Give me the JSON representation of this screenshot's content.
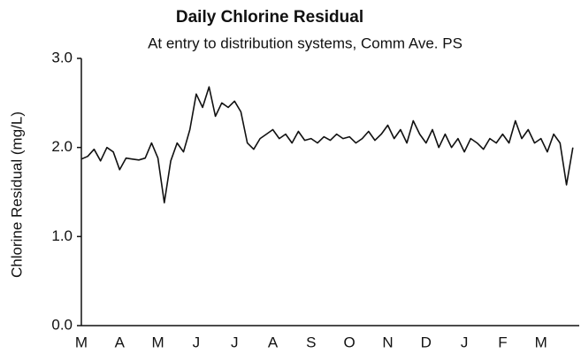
{
  "chart_data": {
    "type": "line",
    "title": "Daily Chlorine Residual",
    "subtitle": "At entry to distribution systems, Comm Ave. PS",
    "y_label": "Chlorine Residual (mg/L)",
    "categories": [
      "M",
      null,
      null,
      null,
      null,
      null,
      "A",
      null,
      null,
      null,
      null,
      null,
      "M",
      null,
      null,
      null,
      null,
      null,
      "J",
      null,
      null,
      null,
      null,
      null,
      "J",
      null,
      null,
      null,
      null,
      null,
      "A",
      null,
      null,
      null,
      null,
      null,
      "S",
      null,
      null,
      null,
      null,
      null,
      "O",
      null,
      null,
      null,
      null,
      null,
      "N",
      null,
      null,
      null,
      null,
      null,
      "D",
      null,
      null,
      null,
      null,
      null,
      "J",
      null,
      null,
      null,
      null,
      null,
      "F",
      null,
      null,
      null,
      null,
      null,
      "M",
      null,
      null,
      null,
      null,
      null
    ],
    "series": [
      {
        "name": "Chlorine Residual",
        "color": "#111111",
        "values": [
          1.87,
          1.9,
          1.98,
          1.85,
          2.0,
          1.95,
          1.75,
          1.88,
          1.87,
          1.86,
          1.88,
          2.05,
          1.88,
          1.38,
          1.85,
          2.05,
          1.95,
          2.2,
          2.6,
          2.45,
          2.68,
          2.35,
          2.5,
          2.45,
          2.52,
          2.4,
          2.05,
          1.98,
          2.1,
          2.15,
          2.2,
          2.1,
          2.15,
          2.05,
          2.18,
          2.08,
          2.1,
          2.05,
          2.12,
          2.08,
          2.15,
          2.1,
          2.12,
          2.05,
          2.1,
          2.18,
          2.08,
          2.15,
          2.25,
          2.1,
          2.2,
          2.05,
          2.3,
          2.15,
          2.05,
          2.2,
          2.0,
          2.15,
          2.0,
          2.1,
          1.95,
          2.1,
          2.05,
          1.98,
          2.1,
          2.05,
          2.15,
          2.05,
          2.3,
          2.1,
          2.2,
          2.05,
          2.1,
          1.95,
          2.15,
          2.05,
          1.58,
          2.0
        ]
      }
    ],
    "ylim": [
      0,
      3
    ],
    "yticks": [
      {
        "value": 0,
        "label": "0.0"
      },
      {
        "value": 1,
        "label": "1.0"
      },
      {
        "value": 2,
        "label": "2.0"
      },
      {
        "value": 3,
        "label": "3.0"
      }
    ],
    "grid": false
  }
}
